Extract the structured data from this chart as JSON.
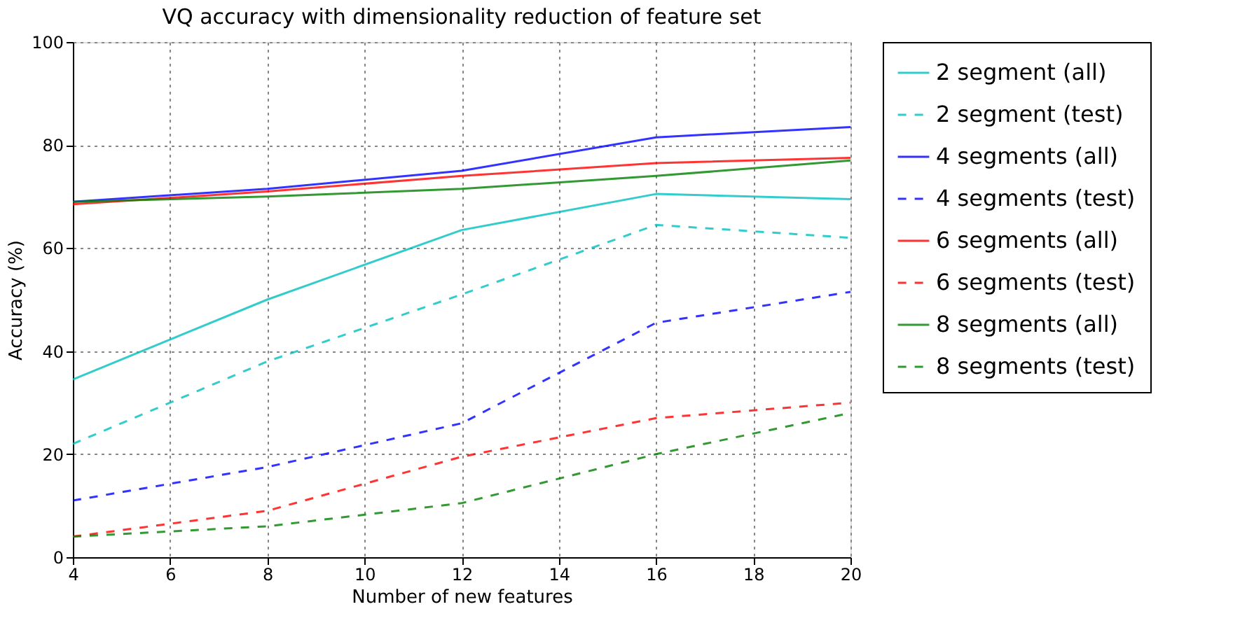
{
  "chart_data": {
    "type": "line",
    "title": "VQ accuracy with dimensionality reduction of feature set",
    "xlabel": "Number of new features",
    "ylabel": "Accuracy (%)",
    "x": [
      4,
      8,
      12,
      16,
      20
    ],
    "xlim": [
      4,
      20
    ],
    "xticks": [
      4,
      6,
      8,
      10,
      12,
      14,
      16,
      18,
      20
    ],
    "ylim": [
      0,
      100
    ],
    "yticks": [
      0,
      20,
      40,
      60,
      80,
      100
    ],
    "grid": true,
    "legend": "right",
    "marker": "none",
    "series": [
      {
        "name": "2 segment (all)",
        "color": "#00bfbf",
        "line_style": "solid",
        "values": [
          34.5,
          50,
          63.5,
          70.5,
          69.5
        ]
      },
      {
        "name": "2 segment (test)",
        "color": "#00bfbf",
        "line_style": "dashed",
        "values": [
          22,
          38,
          51,
          64.5,
          62
        ]
      },
      {
        "name": "4 segments (all)",
        "color": "#0000ff",
        "line_style": "solid",
        "values": [
          69,
          71.5,
          75,
          81.5,
          83.5
        ]
      },
      {
        "name": "4 segments (test)",
        "color": "#0000ff",
        "line_style": "dashed",
        "values": [
          11,
          17.5,
          26,
          45.5,
          51.5
        ]
      },
      {
        "name": "6 segments (all)",
        "color": "#ff0000",
        "line_style": "solid",
        "values": [
          68.5,
          71,
          74,
          76.5,
          77.5
        ]
      },
      {
        "name": "6 segments (test)",
        "color": "#ff0000",
        "line_style": "dashed",
        "values": [
          4,
          9,
          19.5,
          27,
          30
        ]
      },
      {
        "name": "8 segments (all)",
        "color": "#008000",
        "line_style": "solid",
        "values": [
          69,
          70,
          71.5,
          74,
          77
        ]
      },
      {
        "name": "8 segments (test)",
        "color": "#008000",
        "line_style": "dashed",
        "values": [
          4,
          6,
          10.5,
          20,
          28
        ]
      }
    ]
  }
}
